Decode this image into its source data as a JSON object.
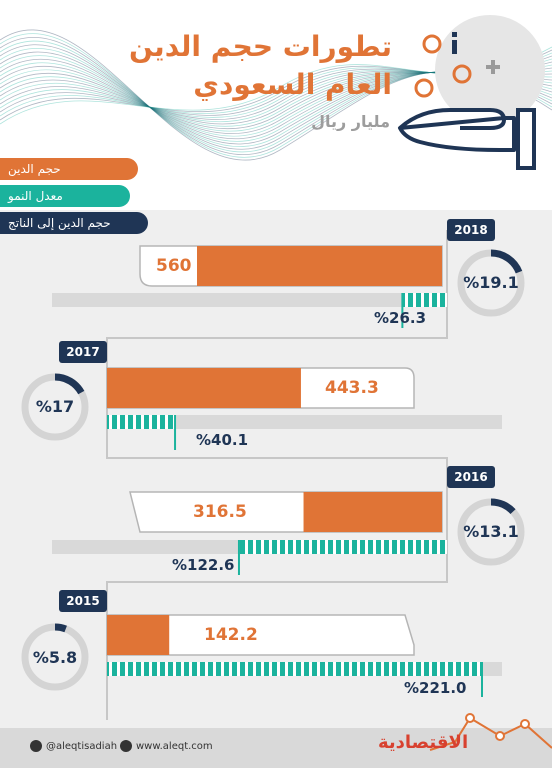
{
  "title_line1": "تطورات حجم الدين",
  "title_line2": "العام السعودي",
  "subtitle": "مليار ريال",
  "legend": [
    {
      "label": "حجم الدين",
      "color": "#e07436"
    },
    {
      "label": "معدل النمو",
      "color": "#1bb39d"
    },
    {
      "label": "حجم الدين إلى الناتج",
      "color": "#1f3555"
    }
  ],
  "colors": {
    "debt": "#e07436",
    "growth": "#1bb39d",
    "ratio": "#1f3555",
    "track": "#d9d9d9"
  },
  "chart_data": {
    "type": "bar",
    "categories": [
      "2018",
      "2017",
      "2016",
      "2015"
    ],
    "series": [
      {
        "name": "حجم الدين",
        "values": [
          560,
          443.3,
          316.5,
          142.2
        ]
      },
      {
        "name": "معدل النمو",
        "values": [
          26.3,
          40.1,
          122.6,
          221.0
        ]
      },
      {
        "name": "حجم الدين إلى الناتج",
        "values": [
          19.1,
          17,
          13.1,
          5.8
        ]
      }
    ],
    "debt_labels": [
      "560",
      "443.3",
      "316.5",
      "142.2"
    ],
    "growth_labels": [
      "%26.3",
      "%40.1",
      "%122.6",
      "%221.0"
    ],
    "ratio_labels": [
      "%19.1",
      "%17",
      "%13.1",
      "%5.8"
    ],
    "units": "مليار ريال",
    "legend_position": "top-left"
  },
  "footer": {
    "twitter": "@aleqtisadiah",
    "website": "www.aleqt.com",
    "brand": "الاقتصادية"
  },
  "icons": [
    "hand-icon",
    "plus-icon",
    "info-icon",
    "coin-icon",
    "twitter-icon",
    "web-icon"
  ]
}
